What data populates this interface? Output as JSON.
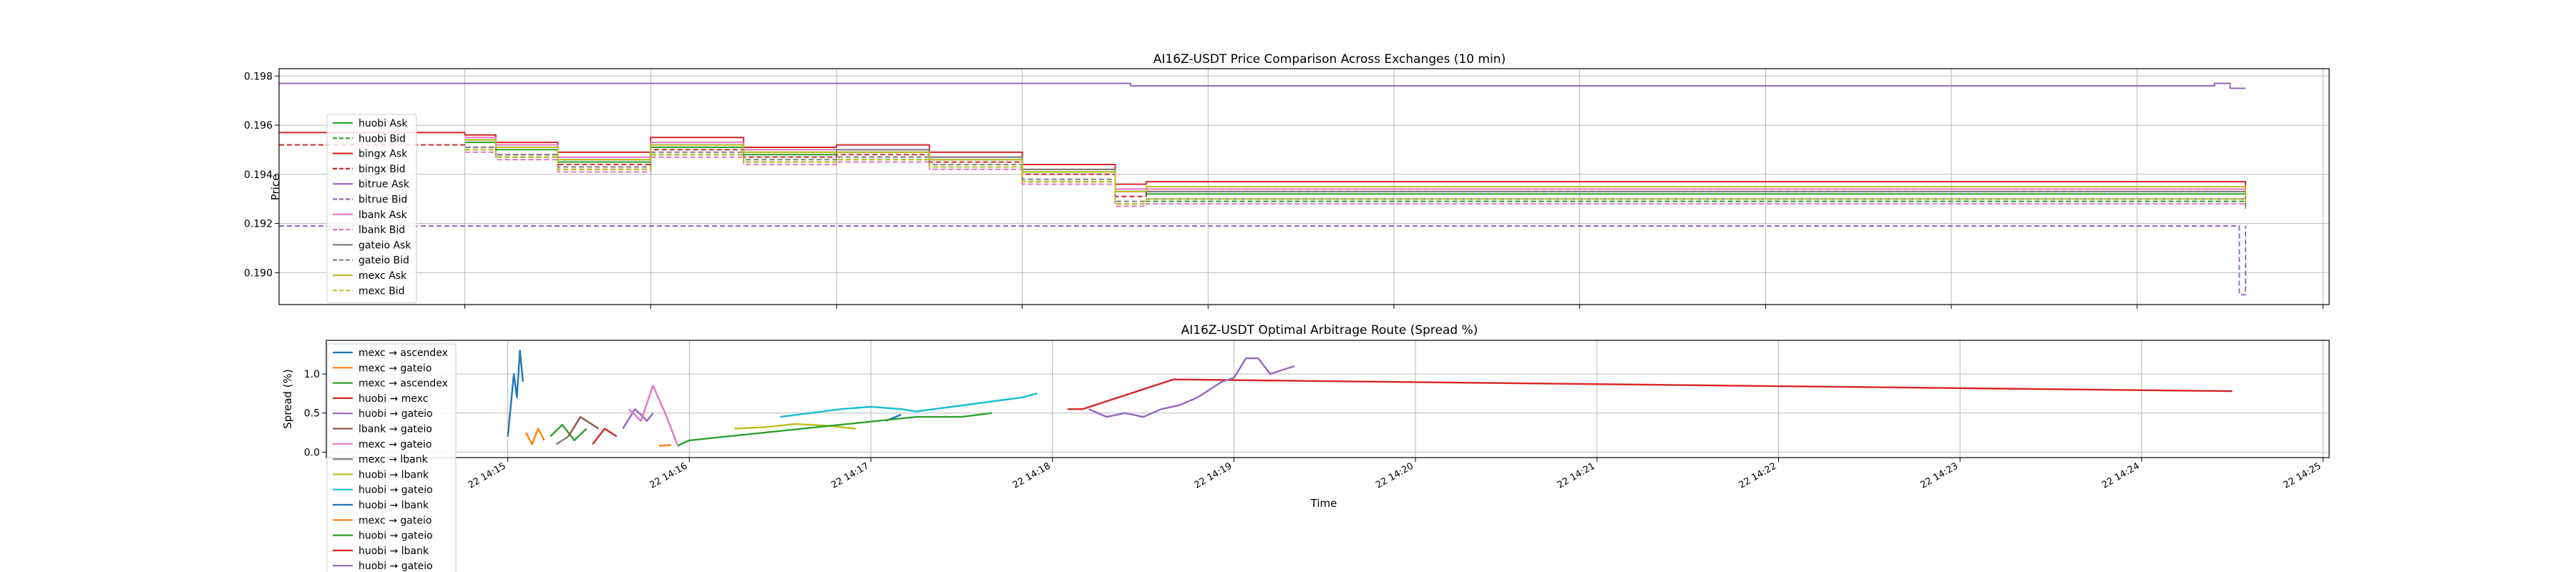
{
  "chart_data": [
    {
      "type": "line",
      "title": "AI16Z-USDT Price Comparison Across Exchanges (10 min)",
      "xlabel": "",
      "ylabel": "Price",
      "ylim": [
        0.1887,
        0.1983
      ],
      "xlim": [
        "14:14:00",
        "14:25:02"
      ],
      "yticks": [
        0.19,
        0.192,
        0.194,
        0.196,
        0.198
      ],
      "ytick_labels": [
        "0.190",
        "0.192",
        "0.194",
        "0.196",
        "0.198"
      ],
      "grid": true,
      "legend": "center-left",
      "series": [
        {
          "name": "huobi Ask",
          "color": "#2ca02c",
          "dash": false,
          "x": [
            "14:15:00",
            "14:15:10",
            "14:15:30",
            "14:16:00",
            "14:16:30",
            "14:17:00",
            "14:17:30",
            "14:18:00",
            "14:18:30",
            "14:18:40",
            "14:24:30",
            "14:24:35"
          ],
          "values": [
            0.1953,
            0.195,
            0.1945,
            0.1951,
            0.1948,
            0.1949,
            0.1946,
            0.1941,
            0.1933,
            0.1932,
            0.1932,
            0.193
          ]
        },
        {
          "name": "huobi Bid",
          "color": "#2ca02c",
          "dash": true,
          "x": [
            "14:15:00",
            "14:15:10",
            "14:15:30",
            "14:16:00",
            "14:16:30",
            "14:17:00",
            "14:17:30",
            "14:18:00",
            "14:18:30",
            "14:18:40",
            "14:24:30",
            "14:24:35"
          ],
          "values": [
            0.195,
            0.1947,
            0.1942,
            0.1948,
            0.1945,
            0.1946,
            0.1943,
            0.1937,
            0.1928,
            0.1929,
            0.1929,
            0.1927
          ]
        },
        {
          "name": "bingx Ask",
          "color": "#d62728",
          "dash": false,
          "x": [
            "14:14:00",
            "14:15:00",
            "14:15:10",
            "14:15:30",
            "14:16:00",
            "14:16:30",
            "14:17:00",
            "14:17:30",
            "14:18:00",
            "14:18:30",
            "14:18:40",
            "14:24:30",
            "14:24:35"
          ],
          "values": [
            0.1957,
            0.1956,
            0.1953,
            0.1949,
            0.1955,
            0.1951,
            0.1952,
            0.1949,
            0.1944,
            0.1936,
            0.1937,
            0.1937,
            0.1932
          ]
        },
        {
          "name": "bingx Bid",
          "color": "#d62728",
          "dash": true,
          "x": [
            "14:14:00",
            "14:15:00",
            "14:15:10",
            "14:15:30",
            "14:16:00",
            "14:16:30",
            "14:17:00",
            "14:17:30",
            "14:18:00",
            "14:18:30",
            "14:18:40",
            "14:24:30",
            "14:24:35"
          ],
          "values": [
            0.1952,
            0.1951,
            0.1948,
            0.1944,
            0.195,
            0.1947,
            0.1948,
            0.1945,
            0.194,
            0.1931,
            0.1933,
            0.1933,
            0.1929
          ]
        },
        {
          "name": "bitrue Ask",
          "color": "#9467bd",
          "dash": false,
          "x": [
            "14:14:00",
            "14:18:30",
            "14:18:35",
            "14:24:25",
            "14:24:30",
            "14:24:35"
          ],
          "values": [
            0.1977,
            0.1977,
            0.1976,
            0.1977,
            0.1975,
            0.1975
          ]
        },
        {
          "name": "bitrue Bid",
          "color": "#9467bd",
          "dash": true,
          "x": [
            "14:14:00",
            "14:24:30",
            "14:24:33",
            "14:24:35"
          ],
          "values": [
            0.1919,
            0.1919,
            0.1891,
            0.1919
          ]
        },
        {
          "name": "lbank Ask",
          "color": "#e377c2",
          "dash": false,
          "x": [
            "14:15:00",
            "14:15:10",
            "14:15:30",
            "14:16:00",
            "14:16:30",
            "14:17:00",
            "14:17:30",
            "14:18:00",
            "14:18:30",
            "14:18:40",
            "14:24:30",
            "14:24:35"
          ],
          "values": [
            0.1955,
            0.1952,
            0.1947,
            0.1953,
            0.195,
            0.195,
            0.1947,
            0.1942,
            0.1934,
            0.1934,
            0.1934,
            0.1931
          ]
        },
        {
          "name": "lbank Bid",
          "color": "#e377c2",
          "dash": true,
          "x": [
            "14:15:00",
            "14:15:10",
            "14:15:30",
            "14:16:00",
            "14:16:30",
            "14:17:00",
            "14:17:30",
            "14:18:00",
            "14:18:30",
            "14:18:40",
            "14:24:30",
            "14:24:35"
          ],
          "values": [
            0.1949,
            0.1946,
            0.1941,
            0.1947,
            0.1944,
            0.1945,
            0.1942,
            0.1936,
            0.1927,
            0.1928,
            0.1928,
            0.1926
          ]
        },
        {
          "name": "gateio Ask",
          "color": "#7f7f7f",
          "dash": false,
          "x": [
            "14:15:00",
            "14:15:10",
            "14:15:30",
            "14:16:00",
            "14:16:30",
            "14:17:00",
            "14:17:30",
            "14:18:00",
            "14:18:30",
            "14:18:40",
            "14:24:30",
            "14:24:35"
          ],
          "values": [
            0.1954,
            0.1951,
            0.1946,
            0.1952,
            0.1949,
            0.195,
            0.1947,
            0.1942,
            0.1933,
            0.1933,
            0.1933,
            0.193
          ]
        },
        {
          "name": "gateio Bid",
          "color": "#7f7f7f",
          "dash": true,
          "x": [
            "14:15:00",
            "14:15:10",
            "14:15:30",
            "14:16:00",
            "14:16:30",
            "14:17:00",
            "14:17:30",
            "14:18:00",
            "14:18:30",
            "14:18:40",
            "14:24:30",
            "14:24:35"
          ],
          "values": [
            0.1951,
            0.1948,
            0.1943,
            0.1949,
            0.1946,
            0.1947,
            0.1944,
            0.1938,
            0.1929,
            0.193,
            0.193,
            0.1928
          ]
        },
        {
          "name": "mexc Ask",
          "color": "#bcbd22",
          "dash": false,
          "x": [
            "14:15:00",
            "14:15:10",
            "14:15:30",
            "14:16:00",
            "14:16:30",
            "14:17:00",
            "14:17:30",
            "14:18:00",
            "14:18:30",
            "14:18:40",
            "14:24:30",
            "14:24:35"
          ],
          "values": [
            0.1954,
            0.1951,
            0.1946,
            0.1952,
            0.1949,
            0.1949,
            0.1946,
            0.1941,
            0.1933,
            0.1935,
            0.1935,
            0.1931
          ]
        },
        {
          "name": "mexc Bid",
          "color": "#bcbd22",
          "dash": true,
          "x": [
            "14:15:00",
            "14:15:10",
            "14:15:30",
            "14:16:00",
            "14:16:30",
            "14:17:00",
            "14:17:30",
            "14:18:00",
            "14:18:30",
            "14:18:40",
            "14:24:30",
            "14:24:35"
          ],
          "values": [
            0.195,
            0.1947,
            0.1942,
            0.1948,
            0.1945,
            0.1946,
            0.1943,
            0.1937,
            0.1928,
            0.193,
            0.193,
            0.1927
          ]
        }
      ]
    },
    {
      "type": "line",
      "title": "AI16Z-USDT Optimal Arbitrage Route (Spread %)",
      "xlabel": "Time",
      "ylabel": "Spread (%)",
      "ylim": [
        -0.07,
        1.43
      ],
      "xlim": [
        "14:14:00",
        "14:25:02"
      ],
      "yticks": [
        0.0,
        0.5,
        1.0
      ],
      "ytick_labels": [
        "0.0",
        "0.5",
        "1.0"
      ],
      "xticks": [
        "14:15:00",
        "14:16:00",
        "14:17:00",
        "14:18:00",
        "14:19:00",
        "14:20:00",
        "14:21:00",
        "14:22:00",
        "14:23:00",
        "14:24:00",
        "14:25:00"
      ],
      "xtick_labels": [
        "22 14:15",
        "22 14:16",
        "22 14:17",
        "22 14:18",
        "22 14:19",
        "22 14:20",
        "22 14:21",
        "22 14:22",
        "22 14:23",
        "22 14:24",
        "22 14:25"
      ],
      "grid": true,
      "legend": "lower-left",
      "series": [
        {
          "name": "mexc → ascendex",
          "color": "#1f77b4",
          "x": [
            "14:15:00",
            "14:15:01",
            "14:15:02",
            "14:15:03",
            "14:15:04",
            "14:15:05"
          ],
          "values": [
            0.2,
            0.6,
            1.0,
            0.7,
            1.3,
            0.9
          ]
        },
        {
          "name": "mexc → gateio",
          "color": "#ff7f0e",
          "x": [
            "14:15:06",
            "14:15:08",
            "14:15:10",
            "14:15:12"
          ],
          "values": [
            0.25,
            0.1,
            0.3,
            0.15
          ]
        },
        {
          "name": "mexc → ascendex",
          "color": "#2ca02c",
          "x": [
            "14:15:14",
            "14:15:18",
            "14:15:22",
            "14:15:26"
          ],
          "values": [
            0.2,
            0.35,
            0.15,
            0.3
          ]
        },
        {
          "name": "huobi → mexc",
          "color": "#d62728",
          "x": [
            "14:15:28",
            "14:15:32",
            "14:15:36"
          ],
          "values": [
            0.1,
            0.3,
            0.2
          ]
        },
        {
          "name": "huobi → gateio",
          "color": "#9467bd",
          "x": [
            "14:15:38",
            "14:15:42",
            "14:15:46",
            "14:15:48"
          ],
          "values": [
            0.3,
            0.55,
            0.4,
            0.5
          ]
        },
        {
          "name": "lbank → gateio",
          "color": "#8c564b",
          "x": [
            "14:15:20",
            "14:15:24",
            "14:15:30"
          ],
          "values": [
            0.2,
            0.45,
            0.3
          ]
        },
        {
          "name": "mexc → gateio",
          "color": "#e377c2",
          "x": [
            "14:15:40",
            "14:15:44",
            "14:15:48",
            "14:15:52",
            "14:15:56"
          ],
          "values": [
            0.55,
            0.4,
            0.85,
            0.5,
            0.1
          ]
        },
        {
          "name": "mexc → lbank",
          "color": "#7f7f7f",
          "x": [
            "14:15:16",
            "14:15:20"
          ],
          "values": [
            0.1,
            0.2
          ]
        },
        {
          "name": "huobi → lbank",
          "color": "#bcbd22",
          "x": [
            "14:16:15",
            "14:16:25",
            "14:16:35",
            "14:16:45",
            "14:16:55"
          ],
          "values": [
            0.3,
            0.32,
            0.36,
            0.34,
            0.3
          ]
        },
        {
          "name": "huobi → gateio",
          "color": "#17becf",
          "x": [
            "14:16:30",
            "14:16:40",
            "14:16:50",
            "14:17:00",
            "14:17:10",
            "14:17:15",
            "14:17:50",
            "14:17:55"
          ],
          "values": [
            0.45,
            0.5,
            0.55,
            0.58,
            0.55,
            0.52,
            0.7,
            0.75
          ]
        },
        {
          "name": "huobi → lbank",
          "color": "#1f77b4",
          "x": [
            "14:17:05",
            "14:17:10"
          ],
          "values": [
            0.4,
            0.48
          ]
        },
        {
          "name": "mexc → gateio",
          "color": "#ff7f0e",
          "x": [
            "14:15:50",
            "14:15:54"
          ],
          "values": [
            0.08,
            0.09
          ]
        },
        {
          "name": "huobi → gateio",
          "color": "#2ca02c",
          "x": [
            "14:15:56",
            "14:16:00",
            "14:17:15",
            "14:17:30",
            "14:17:40"
          ],
          "values": [
            0.08,
            0.15,
            0.45,
            0.45,
            0.5
          ]
        },
        {
          "name": "huobi → lbank",
          "color": "#d62728",
          "x": [
            "14:18:05",
            "14:18:10",
            "14:18:40",
            "14:24:30"
          ],
          "values": [
            0.55,
            0.55,
            0.93,
            0.78
          ]
        },
        {
          "name": "huobi → gateio",
          "color": "#9467bd",
          "x": [
            "14:18:12",
            "14:18:18",
            "14:18:24",
            "14:18:30",
            "14:18:36",
            "14:18:42",
            "14:18:48",
            "14:18:52",
            "14:18:56",
            "14:19:00",
            "14:19:04",
            "14:19:08",
            "14:19:12",
            "14:19:16",
            "14:19:20"
          ],
          "values": [
            0.55,
            0.45,
            0.5,
            0.45,
            0.55,
            0.6,
            0.7,
            0.8,
            0.9,
            0.95,
            1.2,
            1.2,
            1.0,
            1.05,
            1.1
          ]
        }
      ]
    }
  ]
}
